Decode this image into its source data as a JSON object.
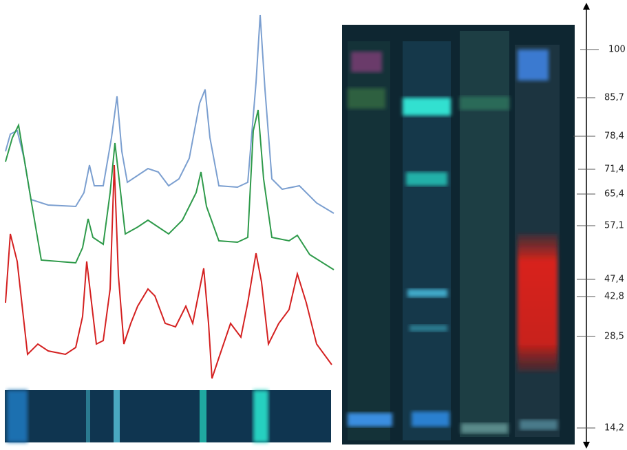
{
  "scale": {
    "ticks": [
      100,
      {
        "value": 85.7,
        "label": "85,7"
      },
      {
        "value": 78.4,
        "label": "78,4"
      },
      {
        "value": 71.4,
        "label": "71,4"
      },
      {
        "value": 65.4,
        "label": "65,4"
      },
      {
        "value": 57.1,
        "label": "57,1"
      },
      {
        "value": 47.4,
        "label": "47,4"
      },
      {
        "value": 42.8,
        "label": "42,8"
      },
      {
        "value": 28.5,
        "label": "28,5"
      },
      {
        "value": 14.2,
        "label": "14,2"
      }
    ]
  }
}
